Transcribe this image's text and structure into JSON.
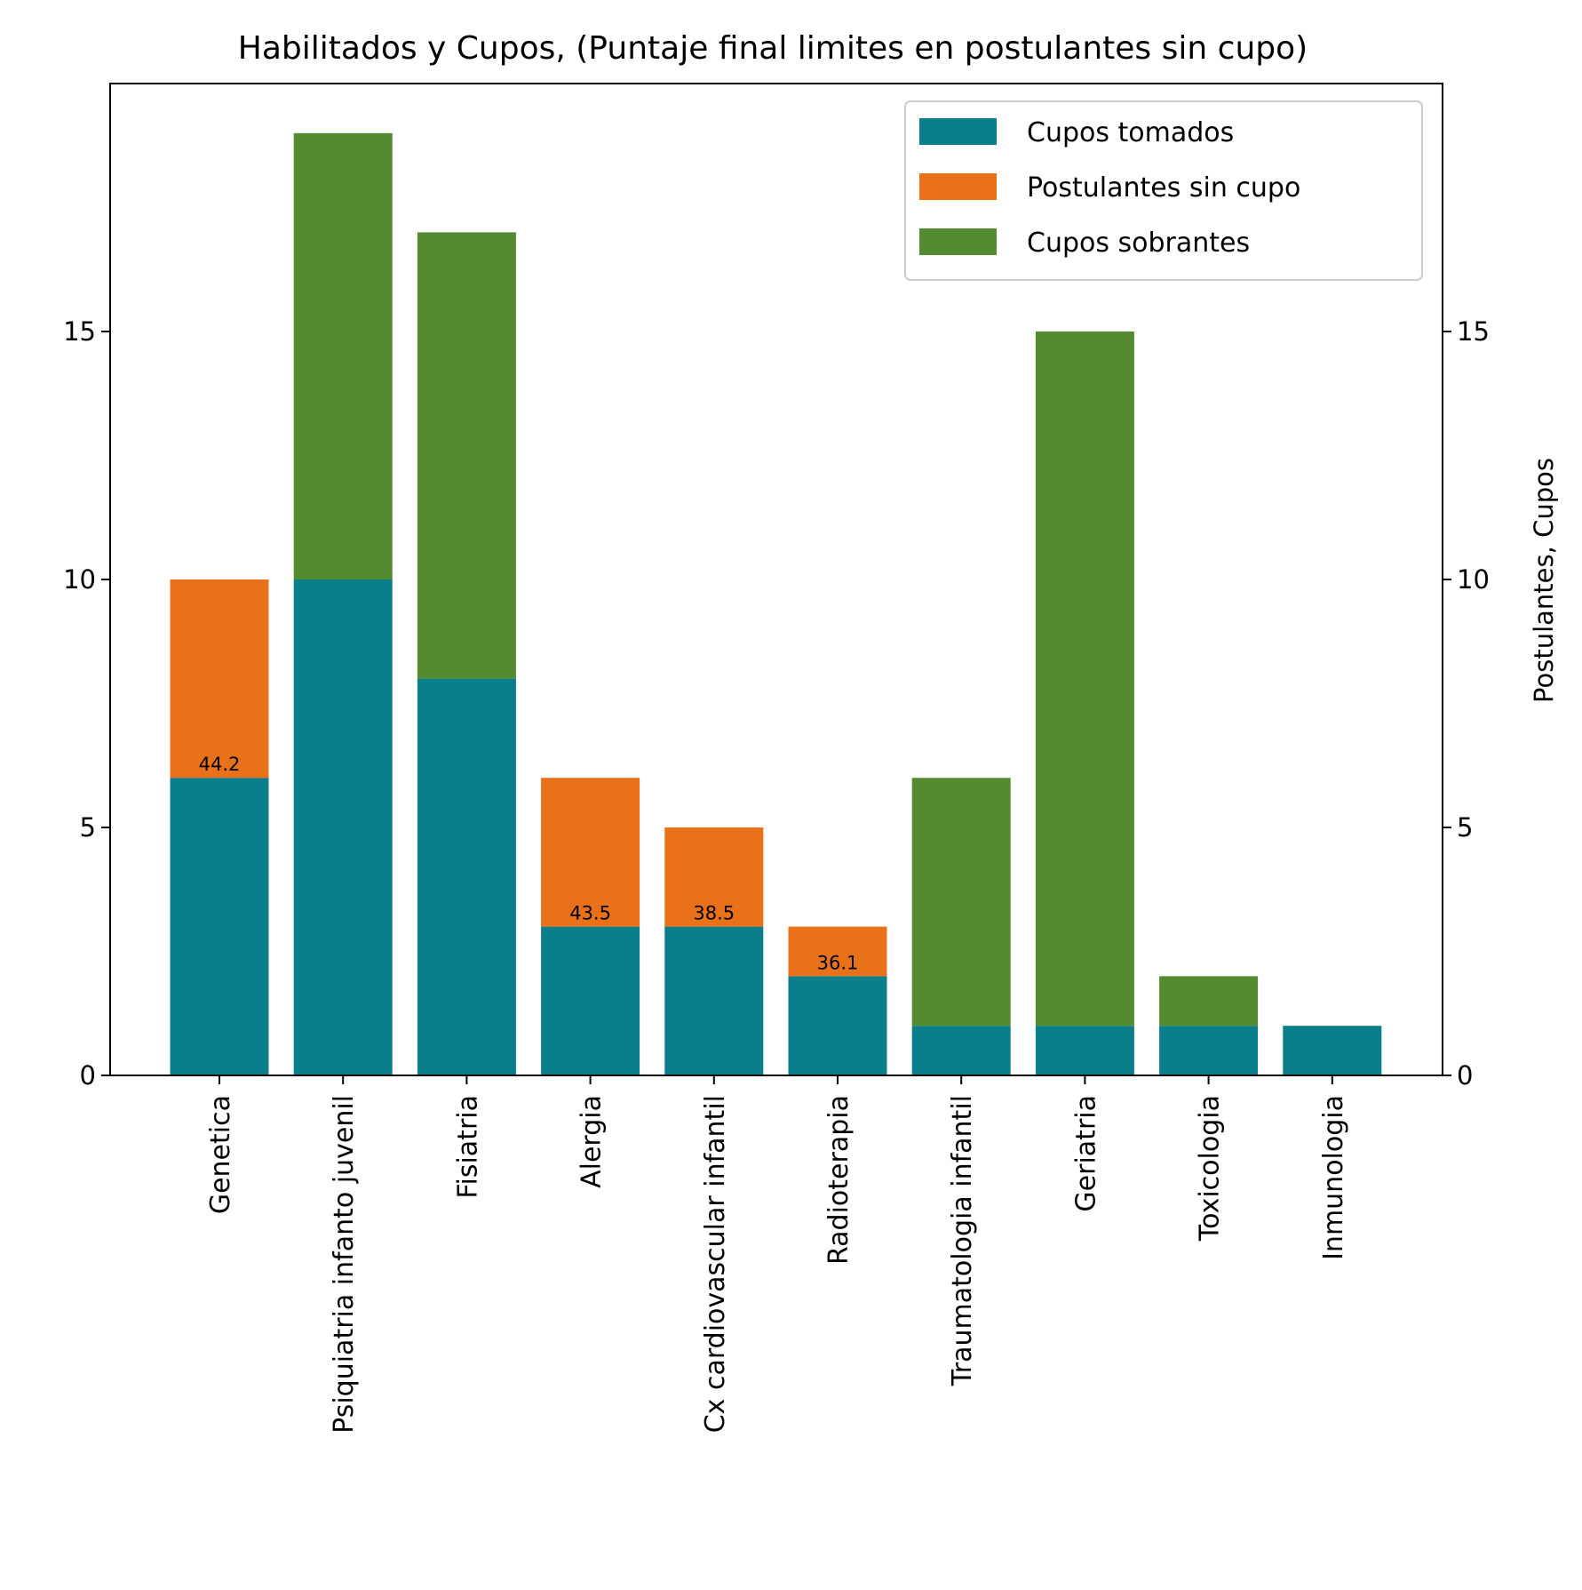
{
  "chart_data": {
    "type": "bar",
    "stacked": true,
    "title": "Habilitados y Cupos, (Puntaje final limites en postulantes sin cupo)",
    "xlabel": "",
    "ylabel": "",
    "ylabel_right": "Postulantes, Cupos",
    "ylim": [
      0,
      20
    ],
    "yticks": [
      0,
      5,
      10,
      15
    ],
    "categories": [
      "Genetica",
      "Psiquiatria infanto juvenil",
      "Fisiatria",
      "Alergia",
      "Cx cardiovascular infantil",
      "Radioterapia",
      "Traumatologia infantil",
      "Geriatria",
      "Toxicologia",
      "Inmunologia"
    ],
    "series": [
      {
        "name": "Cupos tomados",
        "color": "#0a7e8a",
        "values": [
          6,
          10,
          8,
          3,
          3,
          2,
          1,
          1,
          1,
          1
        ]
      },
      {
        "name": "Postulantes sin cupo",
        "color": "#e8711a",
        "values": [
          4,
          0,
          0,
          3,
          2,
          1,
          0,
          0,
          0,
          0
        ]
      },
      {
        "name": "Cupos sobrantes",
        "color": "#548b30",
        "values": [
          0,
          9,
          9,
          0,
          0,
          0,
          5,
          14,
          1,
          0
        ]
      }
    ],
    "annotations": [
      {
        "category": "Genetica",
        "text": "44.2",
        "y": 6
      },
      {
        "category": "Alergia",
        "text": "43.5",
        "y": 3
      },
      {
        "category": "Cx cardiovascular infantil",
        "text": "38.5",
        "y": 3
      },
      {
        "category": "Radioterapia",
        "text": "36.1",
        "y": 2
      }
    ],
    "legend_position": "top-right",
    "grid": false
  }
}
